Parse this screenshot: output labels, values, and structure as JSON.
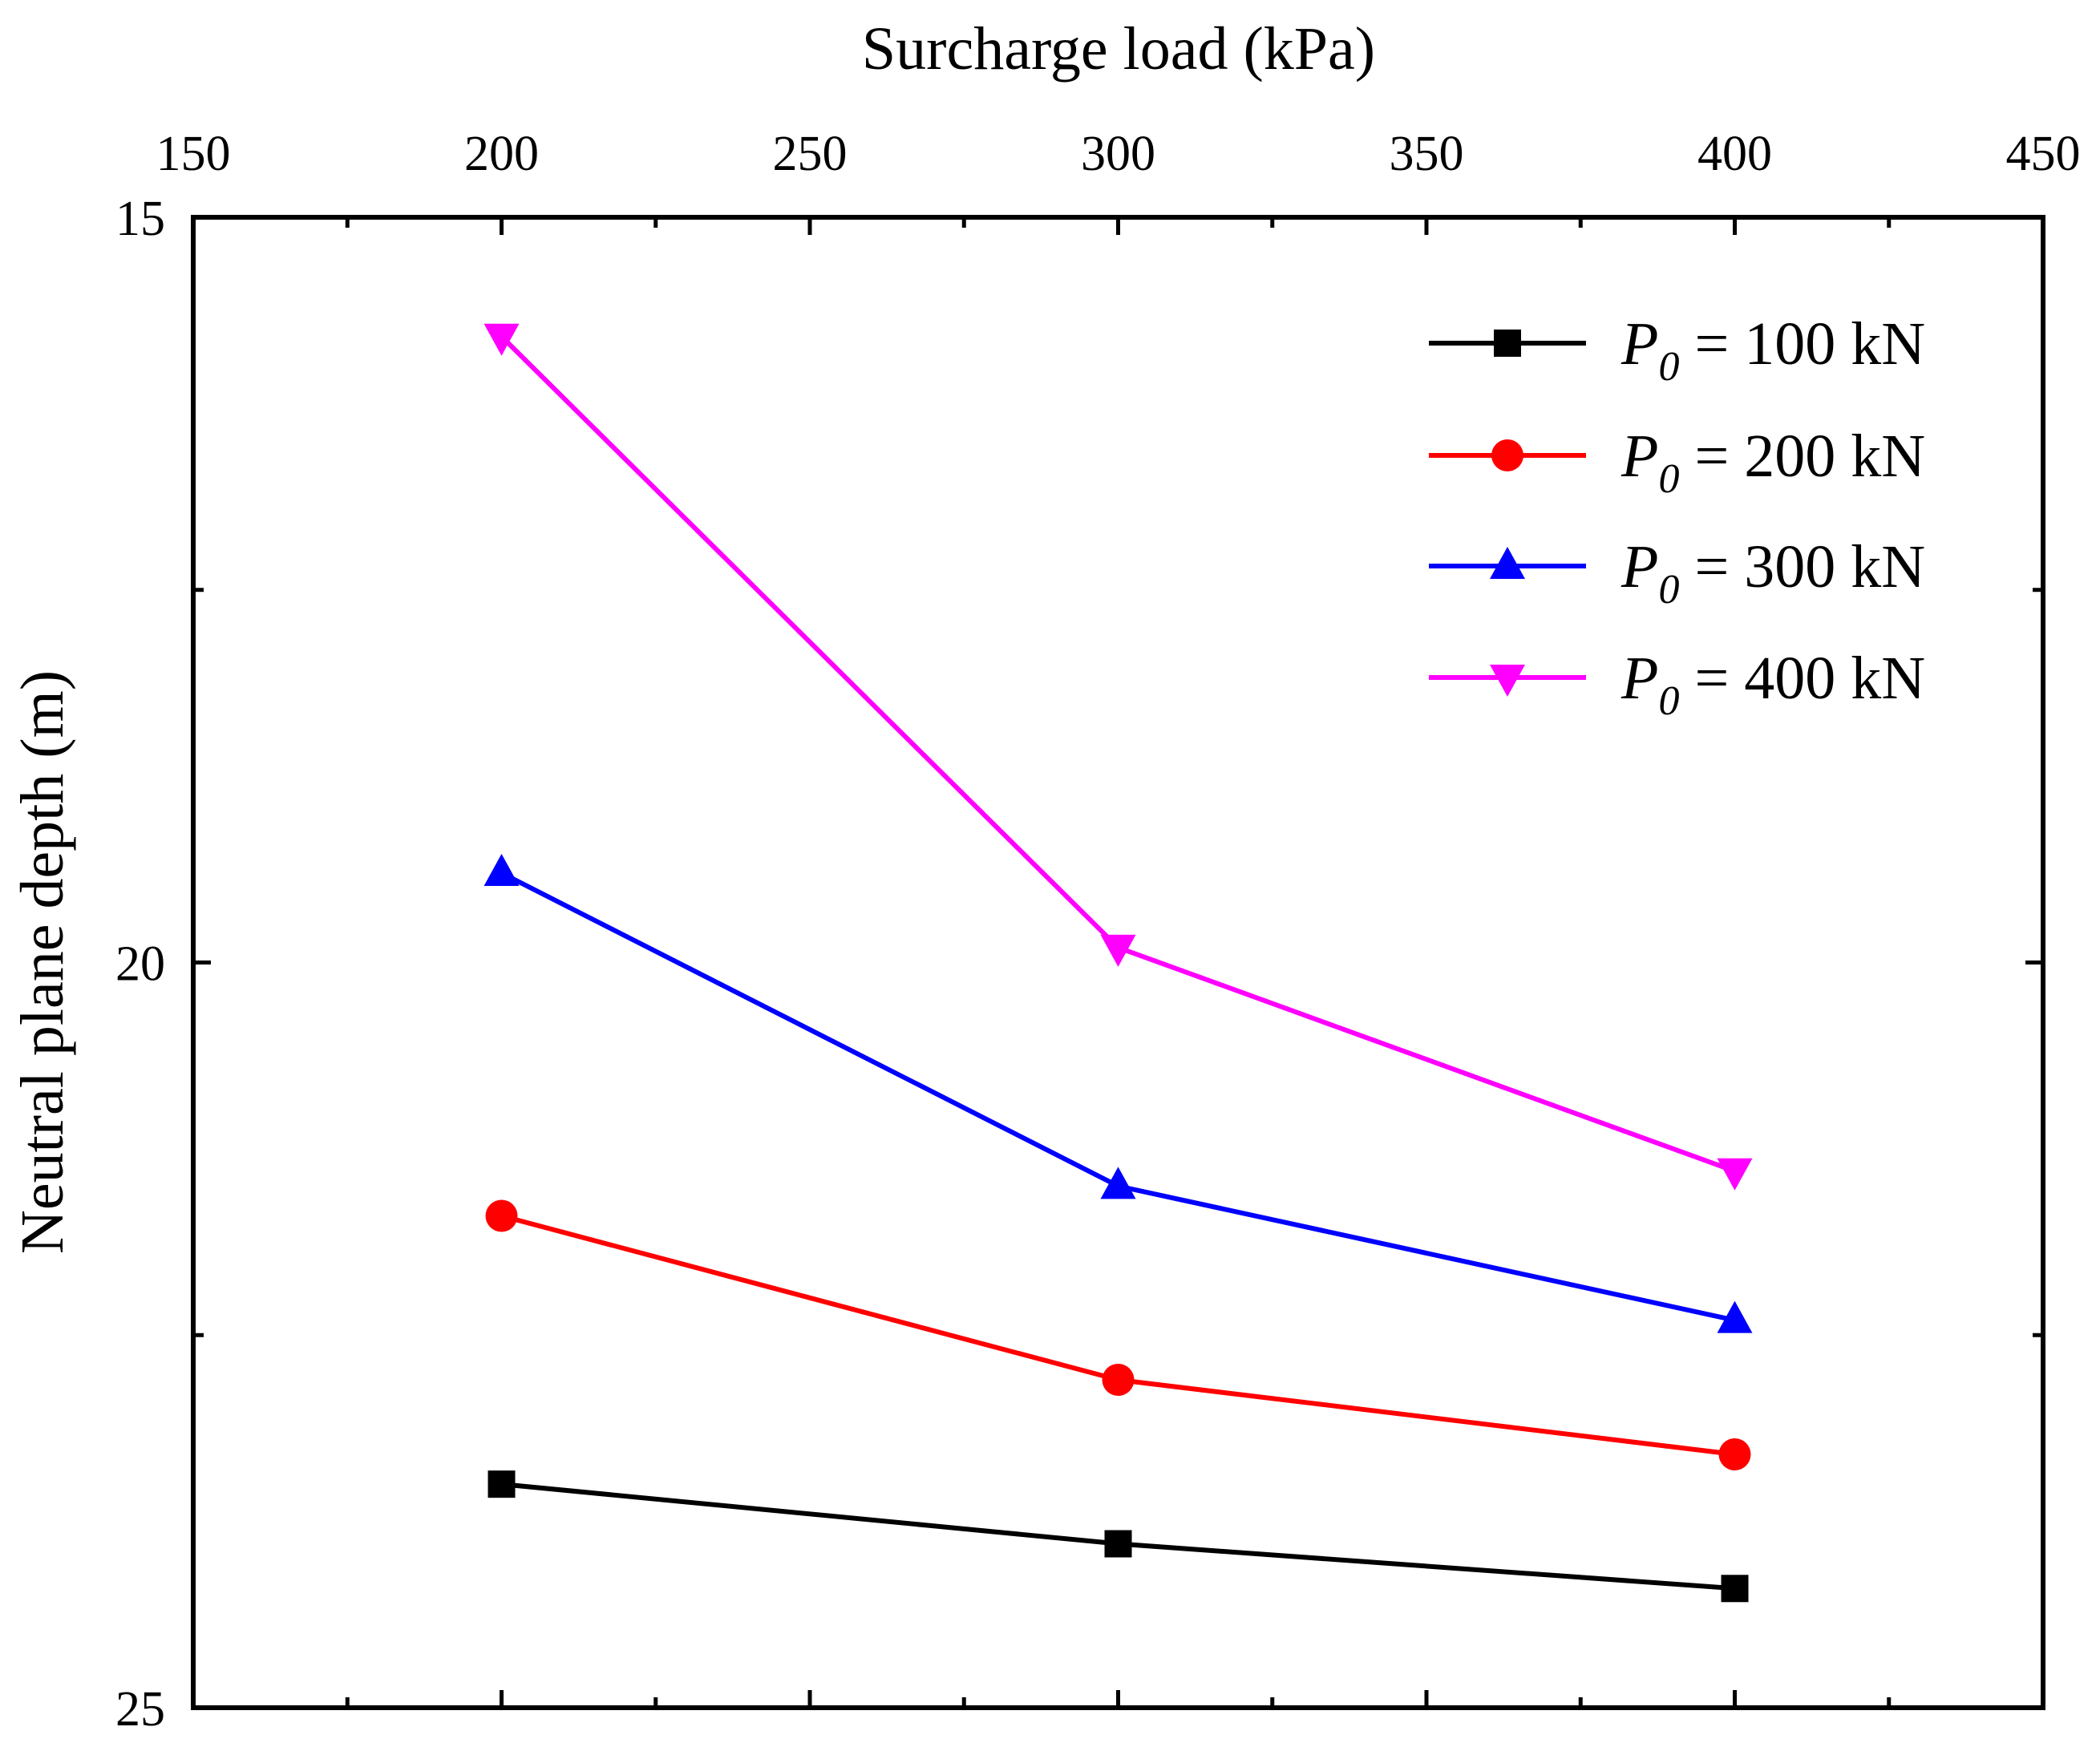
{
  "chart_data": {
    "type": "line",
    "xlabel": "Surcharge load (kPa)",
    "ylabel": "Neutral plane depth (m)",
    "xlim": [
      150,
      450
    ],
    "ylim": [
      15,
      25
    ],
    "y_inverted": true,
    "x_axis_position": "top",
    "x_ticks": [
      150,
      200,
      250,
      300,
      350,
      400,
      450
    ],
    "y_ticks": [
      15,
      20,
      25
    ],
    "x_tick_labels": [
      "150",
      "200",
      "250",
      "300",
      "350",
      "400",
      "450"
    ],
    "y_tick_labels": [
      "15",
      "20",
      "25"
    ],
    "legend_position": "top-right",
    "x": [
      200,
      300,
      400
    ],
    "series": [
      {
        "name_prefix": "P",
        "name_subscript": "0",
        "name_suffix": " = 100 kN",
        "values": [
          23.5,
          23.9,
          24.2
        ],
        "color": "#000000",
        "marker": "square"
      },
      {
        "name_prefix": "P",
        "name_subscript": "0",
        "name_suffix": " = 200 kN",
        "values": [
          21.7,
          22.8,
          23.3
        ],
        "color": "#ff0000",
        "marker": "circle"
      },
      {
        "name_prefix": "P",
        "name_subscript": "0",
        "name_suffix": " = 300 kN",
        "values": [
          19.4,
          21.5,
          22.4
        ],
        "color": "#0000ff",
        "marker": "triangle-up"
      },
      {
        "name_prefix": "P",
        "name_subscript": "0",
        "name_suffix": " = 400 kN",
        "values": [
          15.8,
          19.9,
          21.4
        ],
        "color": "#ff00ff",
        "marker": "triangle-down"
      }
    ]
  }
}
